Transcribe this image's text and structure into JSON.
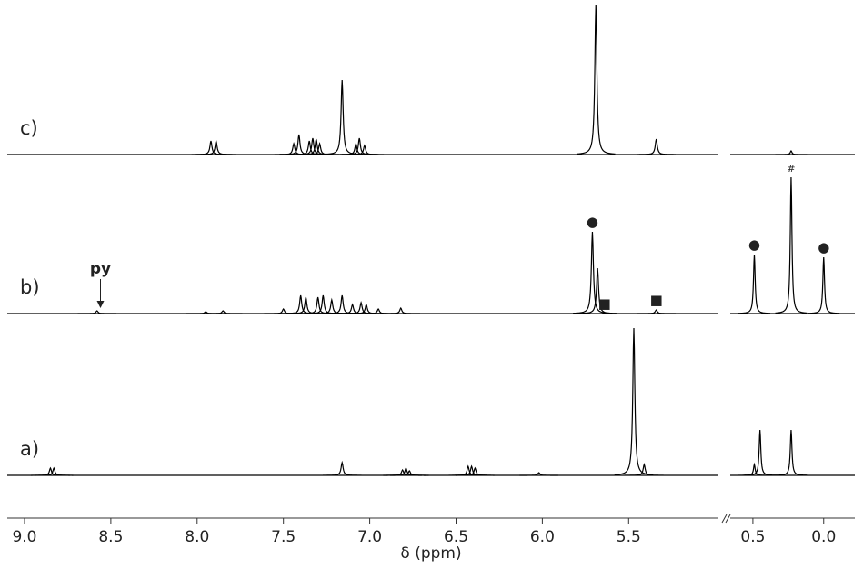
{
  "chart_data": {
    "type": "spectrum",
    "x_label": "δ (ppm)",
    "segments": [
      {
        "xlim": [
          9.1,
          4.98
        ],
        "xticks": [
          {
            "value": 9,
            "label": "9.0"
          },
          {
            "value": 8.5,
            "label": "8.5"
          },
          {
            "value": 8,
            "label": "8.0"
          },
          {
            "value": 7.5,
            "label": "7.5"
          },
          {
            "value": 7,
            "label": "7.0"
          },
          {
            "value": 6.5,
            "label": "6.5"
          },
          {
            "value": 6,
            "label": "6.0"
          },
          {
            "value": 5.5,
            "label": "5.5"
          }
        ]
      },
      {
        "xlim": [
          0.66,
          -0.22
        ],
        "xticks": [
          {
            "value": 0.5,
            "label": "0.5"
          },
          {
            "value": 0,
            "label": "0.0"
          }
        ]
      }
    ],
    "series": [
      {
        "name": "c)",
        "color": "#000000",
        "x": [
          7.92,
          7.89,
          7.44,
          7.41,
          7.35,
          7.33,
          7.31,
          7.29,
          7.16,
          7.08,
          7.06,
          7.03,
          5.69,
          5.34,
          0.23
        ],
        "values": [
          15,
          15,
          12,
          22,
          15,
          18,
          17,
          12,
          82,
          12,
          18,
          10,
          165,
          17,
          4
        ],
        "annotations": []
      },
      {
        "name": "b)",
        "color": "#000000",
        "x": [
          8.58,
          7.95,
          7.85,
          7.5,
          7.4,
          7.37,
          7.3,
          7.27,
          7.22,
          7.16,
          7.1,
          7.05,
          7.02,
          6.95,
          6.82,
          5.71,
          5.68,
          5.34,
          0.49,
          0.23,
          0.0
        ],
        "values": [
          3,
          2,
          3,
          5,
          20,
          18,
          18,
          20,
          15,
          20,
          10,
          12,
          10,
          5,
          6,
          90,
          50,
          4,
          65,
          150,
          62
        ],
        "annotations": [
          {
            "x": 8.56,
            "text": "py",
            "arrow": true
          },
          {
            "x": 5.71,
            "text": "●"
          },
          {
            "x": 5.64,
            "text": "■"
          },
          {
            "x": 5.34,
            "text": "■"
          },
          {
            "x": 0.49,
            "text": "●"
          },
          {
            "x": 0.23,
            "text": "#"
          },
          {
            "x": 0.0,
            "text": "●"
          }
        ]
      },
      {
        "name": "a)",
        "color": "#000000",
        "x": [
          8.85,
          8.83,
          7.16,
          6.81,
          6.79,
          6.77,
          6.43,
          6.41,
          6.39,
          6.02,
          5.47,
          5.41,
          0.49,
          0.45,
          0.23
        ],
        "values": [
          8,
          8,
          14,
          6,
          8,
          5,
          10,
          10,
          8,
          3,
          162,
          12,
          12,
          50,
          50
        ],
        "annotations": []
      }
    ]
  }
}
